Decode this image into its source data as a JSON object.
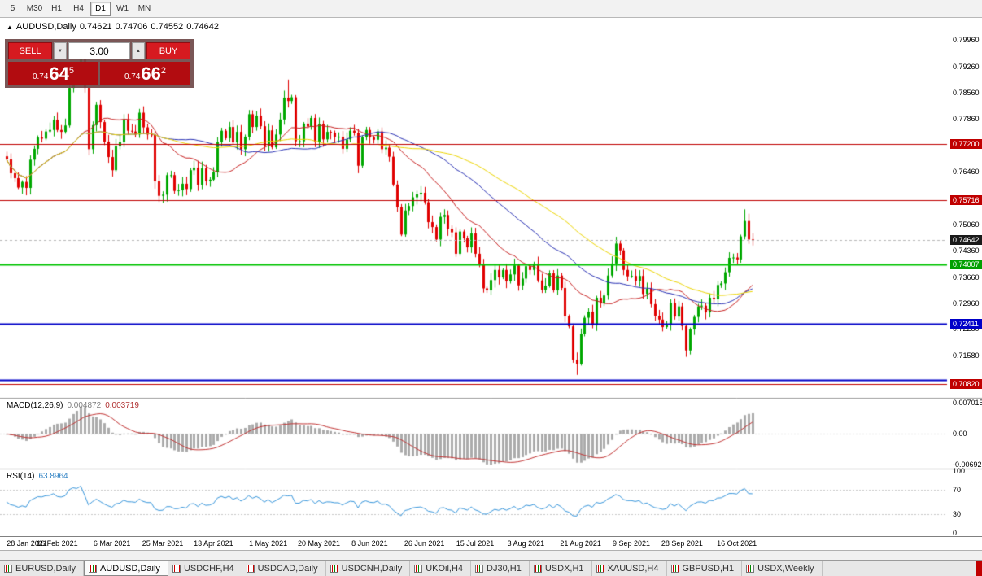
{
  "toolbar": {
    "timeframes": [
      {
        "label": "5",
        "active": false
      },
      {
        "label": "M30",
        "active": false
      },
      {
        "label": "H1",
        "active": false
      },
      {
        "label": "H4",
        "active": false
      },
      {
        "label": "D1",
        "active": true
      },
      {
        "label": "W1",
        "active": false
      },
      {
        "label": "MN",
        "active": false
      }
    ]
  },
  "chart_header": {
    "icon": "▲",
    "symbol": "AUDUSD,Daily",
    "open": "0.74621",
    "high": "0.74706",
    "low": "0.74552",
    "close": "0.74642"
  },
  "trade_panel": {
    "sell_label": "SELL",
    "buy_label": "BUY",
    "volume": "3.00",
    "volume_down_glyph": "▼",
    "volume_up_glyph": "▲",
    "sell_price": {
      "prefix": "0.74",
      "big": "64",
      "sup": "5"
    },
    "buy_price": {
      "prefix": "0.74",
      "big": "66",
      "sup": "2"
    }
  },
  "price_axis": {
    "labels": [
      "0.79960",
      "0.79260",
      "0.78560",
      "0.77860",
      "0.76460",
      "0.75060",
      "0.74360",
      "0.73660",
      "0.72960",
      "0.72280",
      "0.71580"
    ],
    "badges": [
      {
        "text": "0.77200",
        "price": 0.772,
        "bg": "#C00000"
      },
      {
        "text": "0.75716",
        "price": 0.75716,
        "bg": "#C00000"
      },
      {
        "text": "0.74642",
        "price": 0.74642,
        "bg": "#1A1A1A"
      },
      {
        "text": "0.74007",
        "price": 0.74007,
        "bg": "#00A000"
      },
      {
        "text": "0.72411",
        "price": 0.72411,
        "bg": "#0000C8"
      },
      {
        "text": "0.70820",
        "price": 0.7082,
        "bg": "#C00000"
      }
    ]
  },
  "indicators": {
    "macd": {
      "label": "MACD(12,26,9)",
      "value_main": "0.004872",
      "value_signal": "0.003719",
      "axis": [
        {
          "text": "0.007015",
          "value": 0.007015
        },
        {
          "text": "0.00",
          "value": 0
        },
        {
          "text": "-0.00692",
          "value": -0.00692
        }
      ]
    },
    "rsi": {
      "label": "RSI(14)",
      "value": "63.8964",
      "axis": [
        {
          "text": "100",
          "value": 100
        },
        {
          "text": "70",
          "value": 70
        },
        {
          "text": "30",
          "value": 30
        },
        {
          "text": "0",
          "value": 0
        }
      ]
    }
  },
  "date_axis": {
    "ticks": [
      {
        "label": "28 Jan 2021",
        "day": 0
      },
      {
        "label": "16 Feb 2021",
        "day": 13
      },
      {
        "label": "6 Mar 2021",
        "day": 27
      },
      {
        "label": "25 Mar 2021",
        "day": 40
      },
      {
        "label": "13 Apr 2021",
        "day": 53
      },
      {
        "label": "1 May 2021",
        "day": 67
      },
      {
        "label": "20 May 2021",
        "day": 80
      },
      {
        "label": "8 Jun 2021",
        "day": 93
      },
      {
        "label": "26 Jun 2021",
        "day": 107
      },
      {
        "label": "15 Jul 2021",
        "day": 120
      },
      {
        "label": "3 Aug 2021",
        "day": 133
      },
      {
        "label": "21 Aug 2021",
        "day": 147
      },
      {
        "label": "9 Sep 2021",
        "day": 160
      },
      {
        "label": "28 Sep 2021",
        "day": 173
      },
      {
        "label": "16 Oct 2021",
        "day": 187
      }
    ]
  },
  "tabs": [
    {
      "label": "EURUSD,Daily",
      "active": false
    },
    {
      "label": "AUDUSD,Daily",
      "active": true
    },
    {
      "label": "USDCHF,H4",
      "active": false
    },
    {
      "label": "USDCAD,Daily",
      "active": false
    },
    {
      "label": "USDCNH,Daily",
      "active": false
    },
    {
      "label": "UKOil,H4",
      "active": false
    },
    {
      "label": "DJ30,H1",
      "active": false
    },
    {
      "label": "USDX,H1",
      "active": false
    },
    {
      "label": "XAUUSD,H4",
      "active": false
    },
    {
      "label": "GBPUSD,H1",
      "active": false
    },
    {
      "label": "USDX,Weekly",
      "active": false
    }
  ],
  "chart_data": {
    "type": "candlestick",
    "symbol": "AUDUSD",
    "timeframe": "Daily",
    "price_max": 0.8055,
    "price_min": 0.7045,
    "current_price": 0.74642,
    "candle_up_color": "#00A800",
    "candle_down_color": "#E00000",
    "closes": [
      0.7679,
      0.7642,
      0.7629,
      0.7604,
      0.7619,
      0.7603,
      0.7678,
      0.7707,
      0.7737,
      0.7734,
      0.7753,
      0.7757,
      0.7784,
      0.7757,
      0.7752,
      0.7769,
      0.7869,
      0.7915,
      0.7909,
      0.7967,
      0.787,
      0.7706,
      0.777,
      0.7824,
      0.7778,
      0.7726,
      0.7685,
      0.765,
      0.7714,
      0.7725,
      0.7785,
      0.7755,
      0.7753,
      0.7745,
      0.7803,
      0.7764,
      0.7745,
      0.7744,
      0.7621,
      0.7582,
      0.7585,
      0.7637,
      0.7637,
      0.7595,
      0.7597,
      0.7614,
      0.76,
      0.765,
      0.7657,
      0.7611,
      0.7655,
      0.7621,
      0.7625,
      0.7645,
      0.7725,
      0.7755,
      0.7735,
      0.7765,
      0.7724,
      0.7752,
      0.7706,
      0.7739,
      0.7799,
      0.7765,
      0.7795,
      0.7767,
      0.7715,
      0.7756,
      0.7711,
      0.7745,
      0.7785,
      0.7843,
      0.7834,
      0.7844,
      0.7727,
      0.7727,
      0.7774,
      0.7766,
      0.7789,
      0.7725,
      0.7773,
      0.7732,
      0.7752,
      0.775,
      0.7739,
      0.7739,
      0.7707,
      0.7732,
      0.7755,
      0.775,
      0.7662,
      0.7738,
      0.7757,
      0.7737,
      0.7731,
      0.7753,
      0.7706,
      0.771,
      0.7686,
      0.7612,
      0.7552,
      0.7479,
      0.7543,
      0.7555,
      0.7578,
      0.7586,
      0.759,
      0.7565,
      0.7512,
      0.7499,
      0.7466,
      0.7526,
      0.7531,
      0.7494,
      0.7485,
      0.7428,
      0.7487,
      0.7469,
      0.7445,
      0.7482,
      0.7428,
      0.74,
      0.7336,
      0.7331,
      0.7358,
      0.7385,
      0.7365,
      0.7385,
      0.7355,
      0.7373,
      0.7397,
      0.7344,
      0.7362,
      0.7395,
      0.7385,
      0.7401,
      0.7357,
      0.7332,
      0.7343,
      0.7376,
      0.7331,
      0.737,
      0.7337,
      0.7262,
      0.7235,
      0.7146,
      0.7135,
      0.7215,
      0.7258,
      0.7274,
      0.7238,
      0.7311,
      0.7296,
      0.7317,
      0.737,
      0.7402,
      0.7455,
      0.7437,
      0.7385,
      0.7368,
      0.7369,
      0.7356,
      0.7369,
      0.7321,
      0.7335,
      0.7294,
      0.7263,
      0.7253,
      0.7233,
      0.724,
      0.7297,
      0.7261,
      0.7288,
      0.7236,
      0.7171,
      0.7227,
      0.726,
      0.7288,
      0.729,
      0.7272,
      0.7311,
      0.7307,
      0.7345,
      0.7349,
      0.7379,
      0.7417,
      0.7418,
      0.7413,
      0.7474,
      0.7515,
      0.7466,
      0.74642
    ],
    "wick_overrides": {
      "19": {
        "high": 0.799
      },
      "72": {
        "high": 0.7891
      },
      "146": {
        "low": 0.7106
      },
      "189": {
        "high": 0.7546
      }
    },
    "moving_averages": [
      {
        "period": 20,
        "color": "#C82020"
      },
      {
        "period": 42,
        "color": "#2830B4"
      },
      {
        "period": 62,
        "color": "#EDD500"
      }
    ],
    "levels": [
      {
        "price": 0.772,
        "color": "#C00000",
        "width": 1
      },
      {
        "price": 0.75716,
        "color": "#C00000",
        "width": 1
      },
      {
        "price": 0.74007,
        "color": "#00C400",
        "width": 2
      },
      {
        "price": 0.72411,
        "color": "#0000C8",
        "width": 2
      },
      {
        "price": 0.7092,
        "color": "#0000C8",
        "width": 2
      },
      {
        "price": 0.7082,
        "color": "#C00000",
        "width": 1
      }
    ],
    "macd": {
      "fast": 12,
      "slow": 26,
      "signal": 9,
      "scale_max": 0.007015,
      "scale_min": -0.00692,
      "histogram_color": "#ABABAB",
      "signal_color": "#C23434"
    },
    "rsi": {
      "period": 14,
      "levels": [
        70,
        30
      ],
      "color": "#3796DC"
    }
  }
}
